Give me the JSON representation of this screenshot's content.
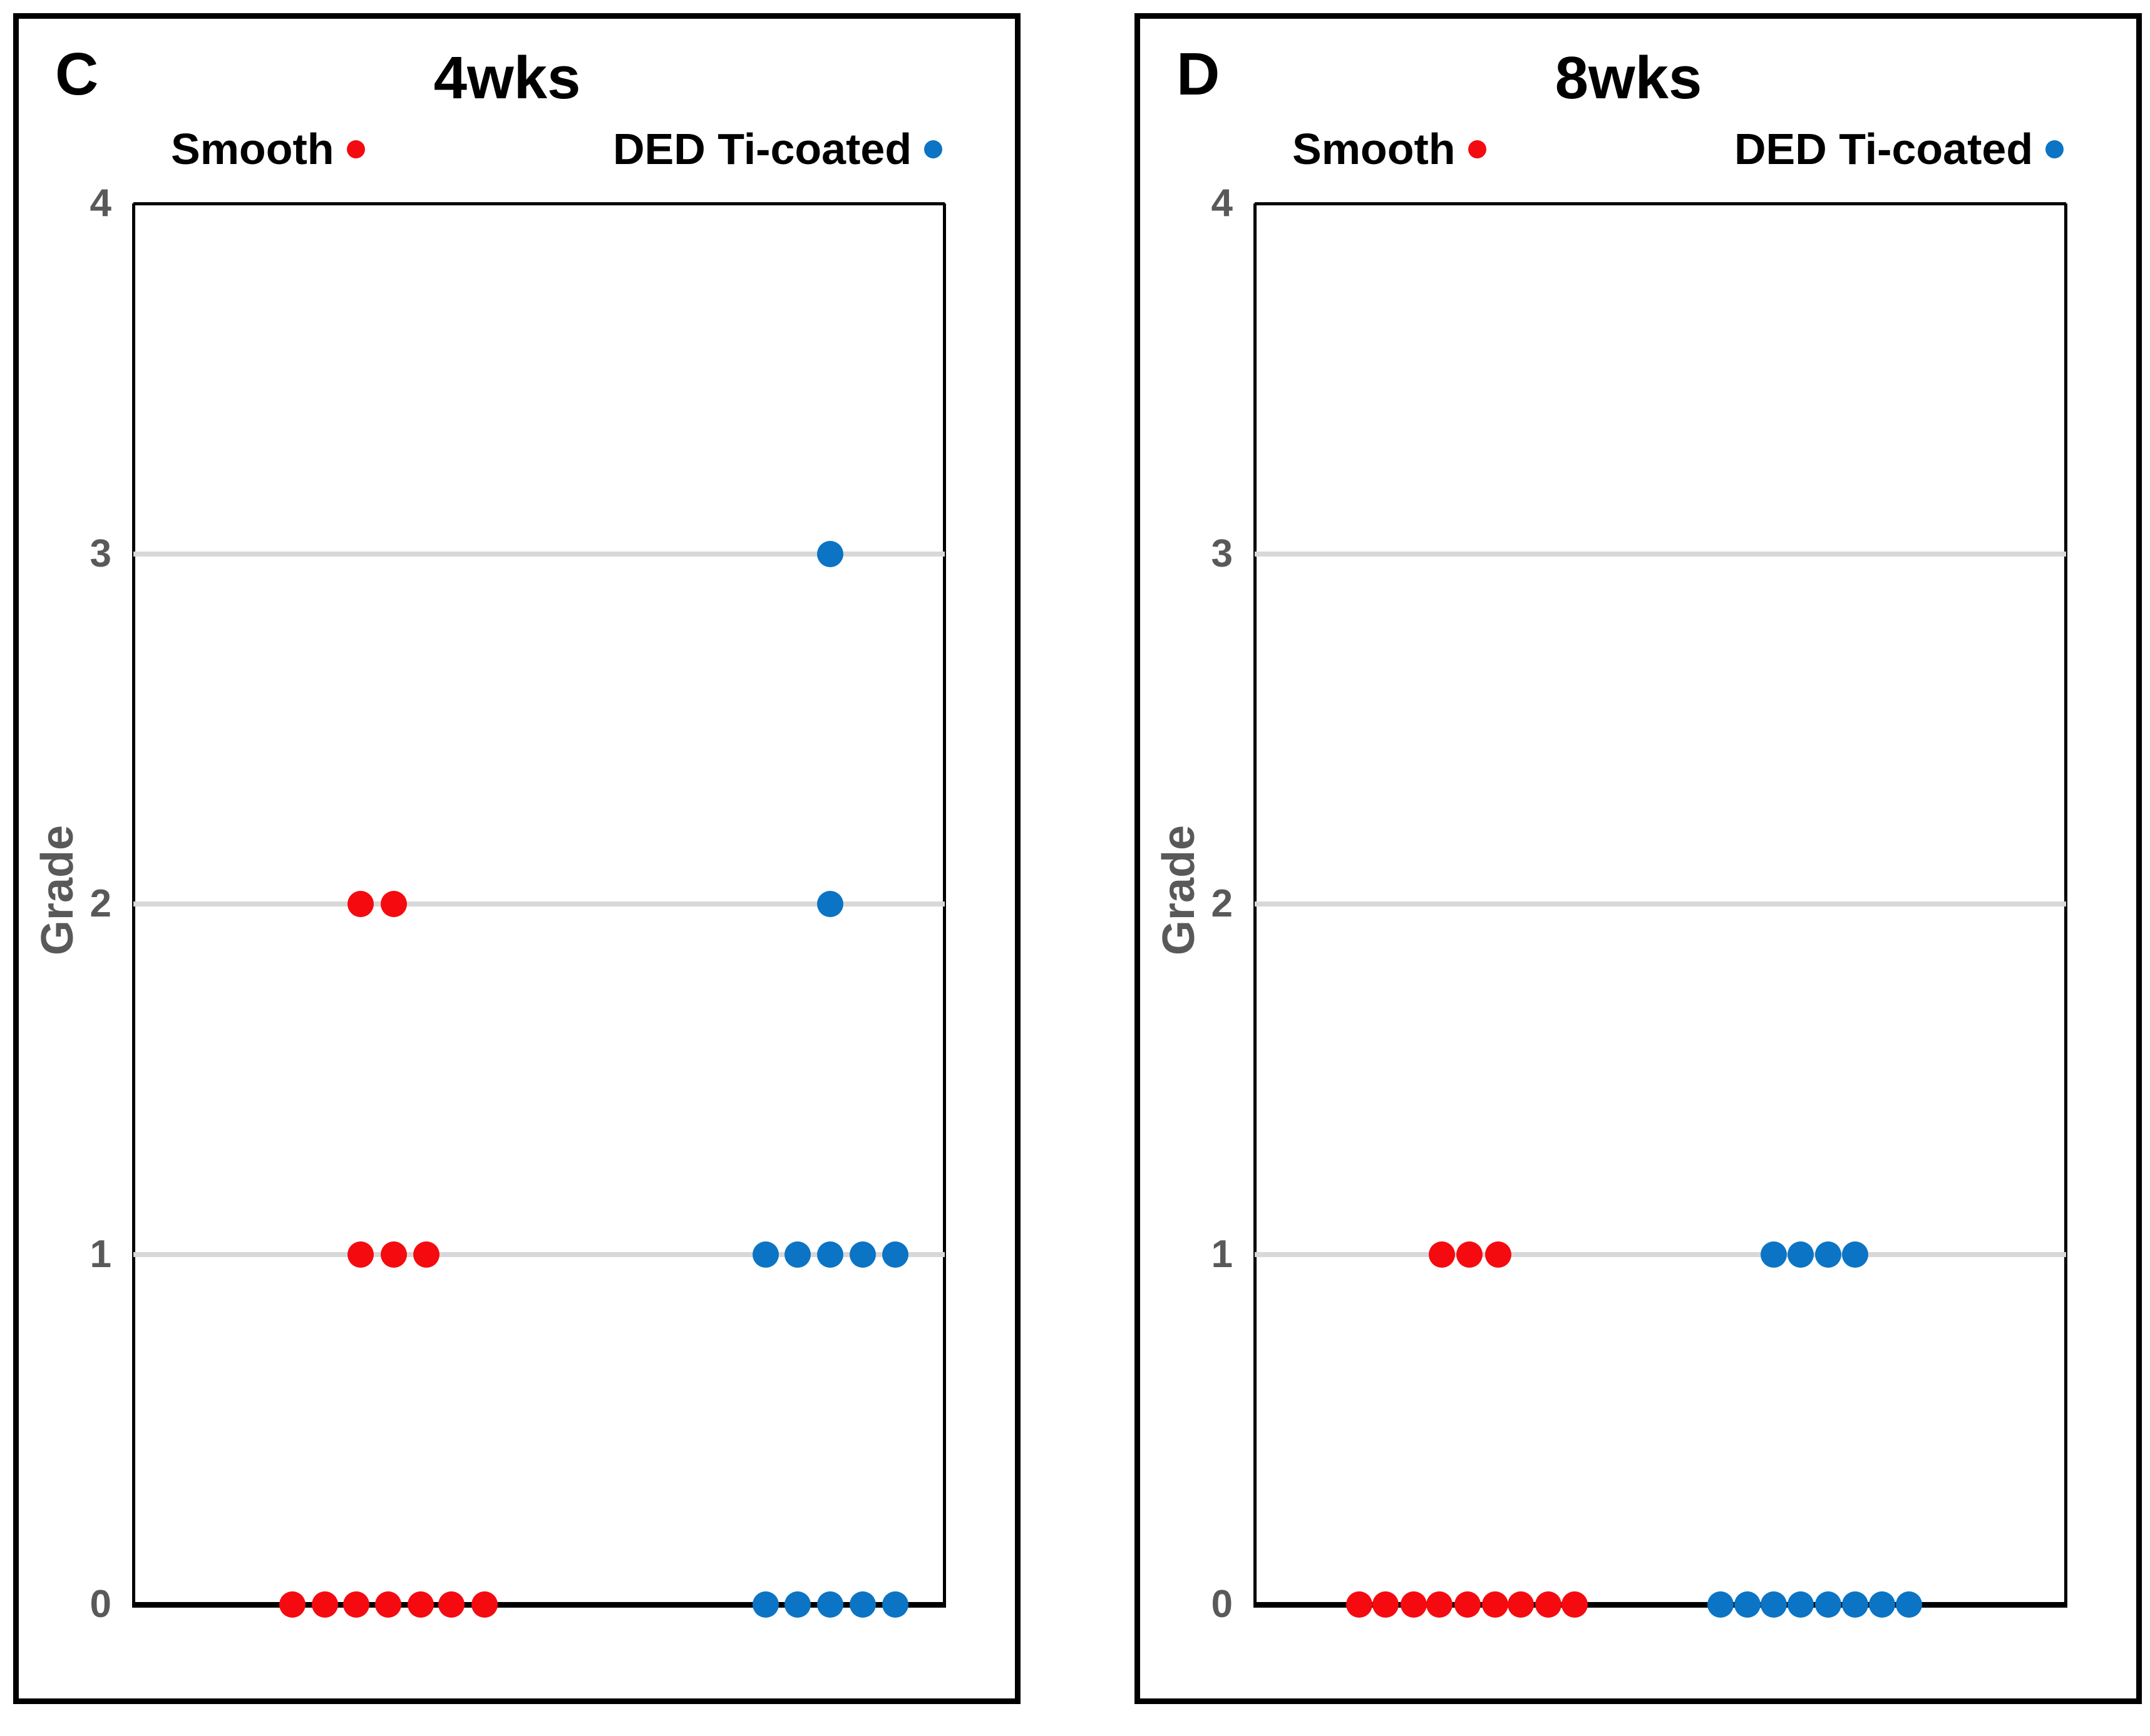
{
  "figure": {
    "background": "#ffffff",
    "colors": {
      "smooth": "#f50a10",
      "ded_ti_coated": "#0b74c4",
      "gridline": "#d8d8d8",
      "axis": "#000000",
      "tick_text": "#595959"
    },
    "panels": [
      {
        "letter": "C",
        "title": "4wks",
        "ylabel": "Grade",
        "yticks": [
          "4",
          "3",
          "2",
          "1",
          "0"
        ],
        "ymax": 4,
        "legend": [
          {
            "label": "Smooth",
            "color": "#f50a10",
            "marker": "red-dot"
          },
          {
            "label": "DED Ti-coated",
            "color": "#0b74c4",
            "marker": "blue-dot"
          }
        ],
        "series": [
          {
            "name": "Smooth",
            "color": "#f50a10",
            "points": [
              {
                "grade": 0,
                "x": 0.196
              },
              {
                "grade": 0,
                "x": 0.236
              },
              {
                "grade": 0,
                "x": 0.275
              },
              {
                "grade": 0,
                "x": 0.314
              },
              {
                "grade": 0,
                "x": 0.354
              },
              {
                "grade": 0,
                "x": 0.392
              },
              {
                "grade": 0,
                "x": 0.433
              },
              {
                "grade": 1,
                "x": 0.28
              },
              {
                "grade": 1,
                "x": 0.321
              },
              {
                "grade": 1,
                "x": 0.361
              },
              {
                "grade": 2,
                "x": 0.28
              },
              {
                "grade": 2,
                "x": 0.321
              }
            ]
          },
          {
            "name": "DED Ti-coated",
            "color": "#0b74c4",
            "points": [
              {
                "grade": 0,
                "x": 0.779
              },
              {
                "grade": 0,
                "x": 0.819
              },
              {
                "grade": 0,
                "x": 0.859
              },
              {
                "grade": 0,
                "x": 0.899
              },
              {
                "grade": 0,
                "x": 0.939
              },
              {
                "grade": 1,
                "x": 0.779
              },
              {
                "grade": 1,
                "x": 0.819
              },
              {
                "grade": 1,
                "x": 0.859
              },
              {
                "grade": 1,
                "x": 0.899
              },
              {
                "grade": 1,
                "x": 0.939
              },
              {
                "grade": 2,
                "x": 0.859
              },
              {
                "grade": 3,
                "x": 0.859
              }
            ]
          }
        ]
      },
      {
        "letter": "D",
        "title": "8wks",
        "ylabel": "Grade",
        "yticks": [
          "4",
          "3",
          "2",
          "1",
          "0"
        ],
        "ymax": 4,
        "legend": [
          {
            "label": "Smooth",
            "color": "#f50a10",
            "marker": "red-dot"
          },
          {
            "label": "DED Ti-coated",
            "color": "#0b74c4",
            "marker": "blue-dot"
          }
        ],
        "series": [
          {
            "name": "Smooth",
            "color": "#f50a10",
            "points": [
              {
                "grade": 0,
                "x": 0.129
              },
              {
                "grade": 0,
                "x": 0.161
              },
              {
                "grade": 0,
                "x": 0.196
              },
              {
                "grade": 0,
                "x": 0.228
              },
              {
                "grade": 0,
                "x": 0.262
              },
              {
                "grade": 0,
                "x": 0.296
              },
              {
                "grade": 0,
                "x": 0.328
              },
              {
                "grade": 0,
                "x": 0.362
              },
              {
                "grade": 0,
                "x": 0.394
              },
              {
                "grade": 1,
                "x": 0.231
              },
              {
                "grade": 1,
                "x": 0.265
              },
              {
                "grade": 1,
                "x": 0.3
              }
            ]
          },
          {
            "name": "DED Ti-coated",
            "color": "#0b74c4",
            "points": [
              {
                "grade": 0,
                "x": 0.574
              },
              {
                "grade": 0,
                "x": 0.607
              },
              {
                "grade": 0,
                "x": 0.64
              },
              {
                "grade": 0,
                "x": 0.673
              },
              {
                "grade": 0,
                "x": 0.707
              },
              {
                "grade": 0,
                "x": 0.74
              },
              {
                "grade": 0,
                "x": 0.773
              },
              {
                "grade": 0,
                "x": 0.806
              },
              {
                "grade": 1,
                "x": 0.64
              },
              {
                "grade": 1,
                "x": 0.673
              },
              {
                "grade": 1,
                "x": 0.707
              },
              {
                "grade": 1,
                "x": 0.74
              }
            ]
          }
        ]
      }
    ]
  },
  "chart_data": [
    {
      "type": "scatter",
      "panel": "C",
      "title": "4wks",
      "xlabel": "",
      "ylabel": "Grade",
      "ylim": [
        0,
        4
      ],
      "yticks": [
        0,
        1,
        2,
        3,
        4
      ],
      "grid": true,
      "gridlines_at": [
        1,
        2,
        3
      ],
      "legend_position": "top",
      "series": [
        {
          "name": "Smooth",
          "color": "#f50a10",
          "n": 12,
          "grade_values": [
            0,
            0,
            0,
            0,
            0,
            0,
            0,
            1,
            1,
            1,
            2,
            2
          ],
          "grade_counts": {
            "0": 7,
            "1": 3,
            "2": 2,
            "3": 0,
            "4": 0
          }
        },
        {
          "name": "DED Ti-coated",
          "color": "#0b74c4",
          "n": 12,
          "grade_values": [
            0,
            0,
            0,
            0,
            0,
            1,
            1,
            1,
            1,
            1,
            2,
            3
          ],
          "grade_counts": {
            "0": 5,
            "1": 5,
            "2": 1,
            "3": 1,
            "4": 0
          }
        }
      ]
    },
    {
      "type": "scatter",
      "panel": "D",
      "title": "8wks",
      "xlabel": "",
      "ylabel": "Grade",
      "ylim": [
        0,
        4
      ],
      "yticks": [
        0,
        1,
        2,
        3,
        4
      ],
      "grid": true,
      "gridlines_at": [
        1,
        2,
        3
      ],
      "legend_position": "top",
      "series": [
        {
          "name": "Smooth",
          "color": "#f50a10",
          "n": 12,
          "grade_values": [
            0,
            0,
            0,
            0,
            0,
            0,
            0,
            0,
            0,
            1,
            1,
            1
          ],
          "grade_counts": {
            "0": 9,
            "1": 3,
            "2": 0,
            "3": 0,
            "4": 0
          }
        },
        {
          "name": "DED Ti-coated",
          "color": "#0b74c4",
          "n": 12,
          "grade_values": [
            0,
            0,
            0,
            0,
            0,
            0,
            0,
            0,
            1,
            1,
            1,
            1
          ],
          "grade_counts": {
            "0": 8,
            "1": 4,
            "2": 0,
            "3": 0,
            "4": 0
          }
        }
      ]
    }
  ]
}
